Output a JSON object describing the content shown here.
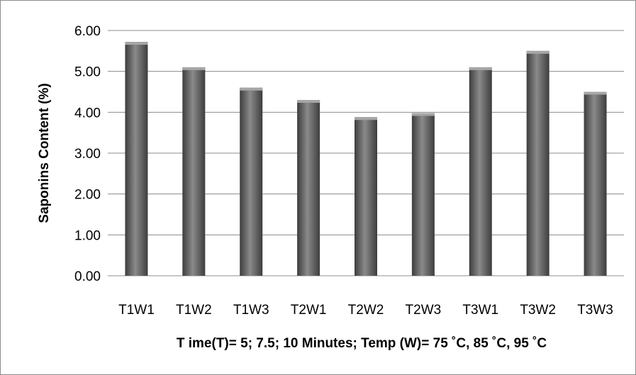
{
  "chart_data": {
    "type": "bar",
    "title": "",
    "xlabel": "T ime(T)= 5; 7.5; 10 Minutes; Temp (W)= 75 ˚C, 85 ˚C, 95 ˚C",
    "ylabel": "Saponins Content (%)",
    "categories": [
      "T1W1",
      "T1W2",
      "T1W3",
      "T2W1",
      "T2W2",
      "T2W3",
      "T3W1",
      "T3W2",
      "T3W3"
    ],
    "values": [
      5.72,
      5.1,
      4.6,
      4.3,
      3.88,
      3.98,
      5.1,
      5.5,
      4.5
    ],
    "ylim": [
      0,
      6
    ],
    "yticks": [
      "0.00",
      "1.00",
      "2.00",
      "3.00",
      "4.00",
      "5.00",
      "6.00"
    ],
    "grid": true,
    "legend": "none",
    "colors": {
      "bar_dark": "#3d3d3d",
      "bar_light": "#8a8a8a",
      "bar_top": "#a6a6a6",
      "grid": "#8c8c8c"
    }
  }
}
